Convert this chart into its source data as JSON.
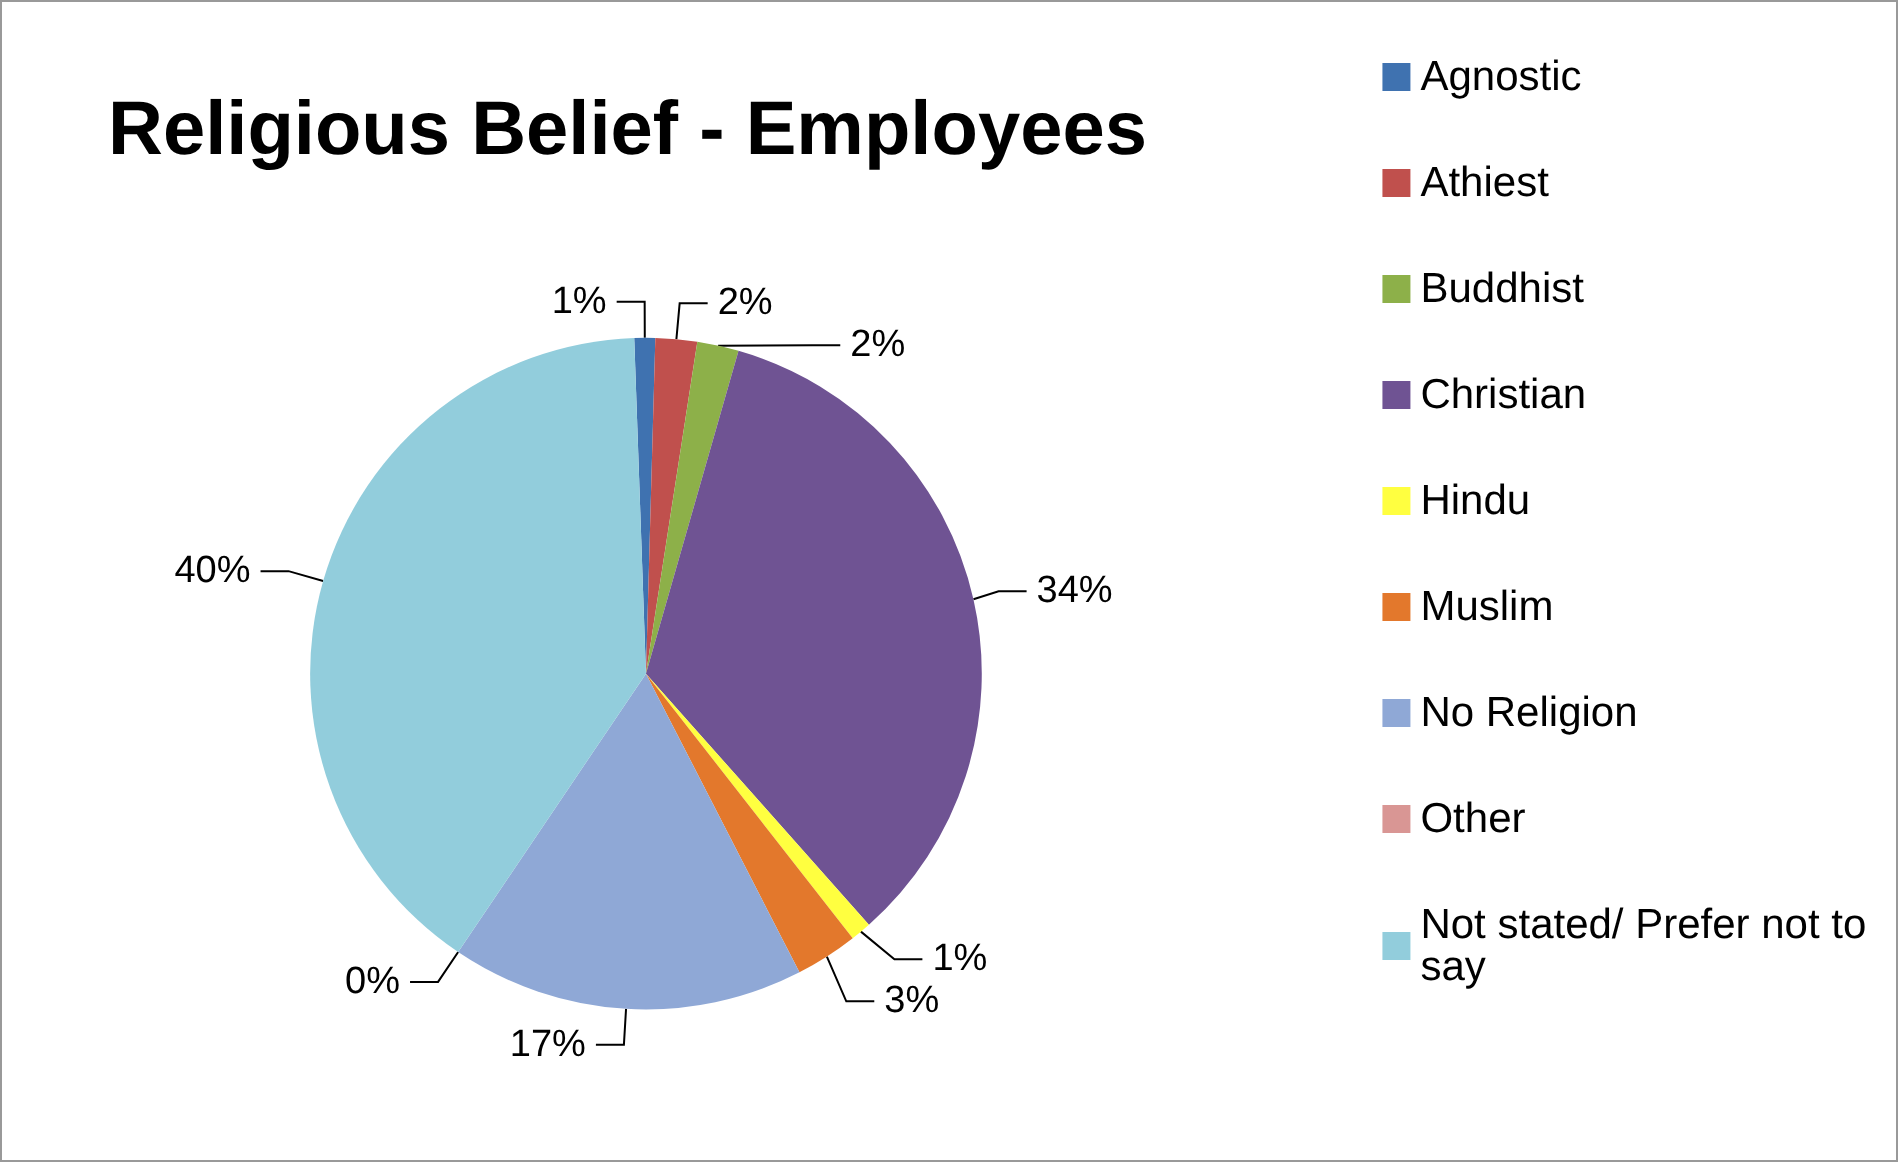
{
  "chart_data": {
    "type": "pie",
    "title": "Religious Belief - Employees",
    "categories": [
      "Agnostic",
      "Athiest",
      "Buddhist",
      "Christian",
      "Hindu",
      "Muslim",
      "No Religion",
      "Other",
      "Not stated/ Prefer not to say"
    ],
    "values": [
      1,
      2,
      2,
      34,
      1,
      3,
      17,
      0,
      40
    ],
    "value_labels": [
      "1%",
      "2%",
      "2%",
      "34%",
      "1%",
      "3%",
      "17%",
      "0%",
      "40%"
    ],
    "colors": [
      "#3f72b0",
      "#c0504d",
      "#8db049",
      "#6f5393",
      "#ffff40",
      "#e3782c",
      "#8fa8d6",
      "#d99694",
      "#92cddc"
    ],
    "legend": "right"
  }
}
